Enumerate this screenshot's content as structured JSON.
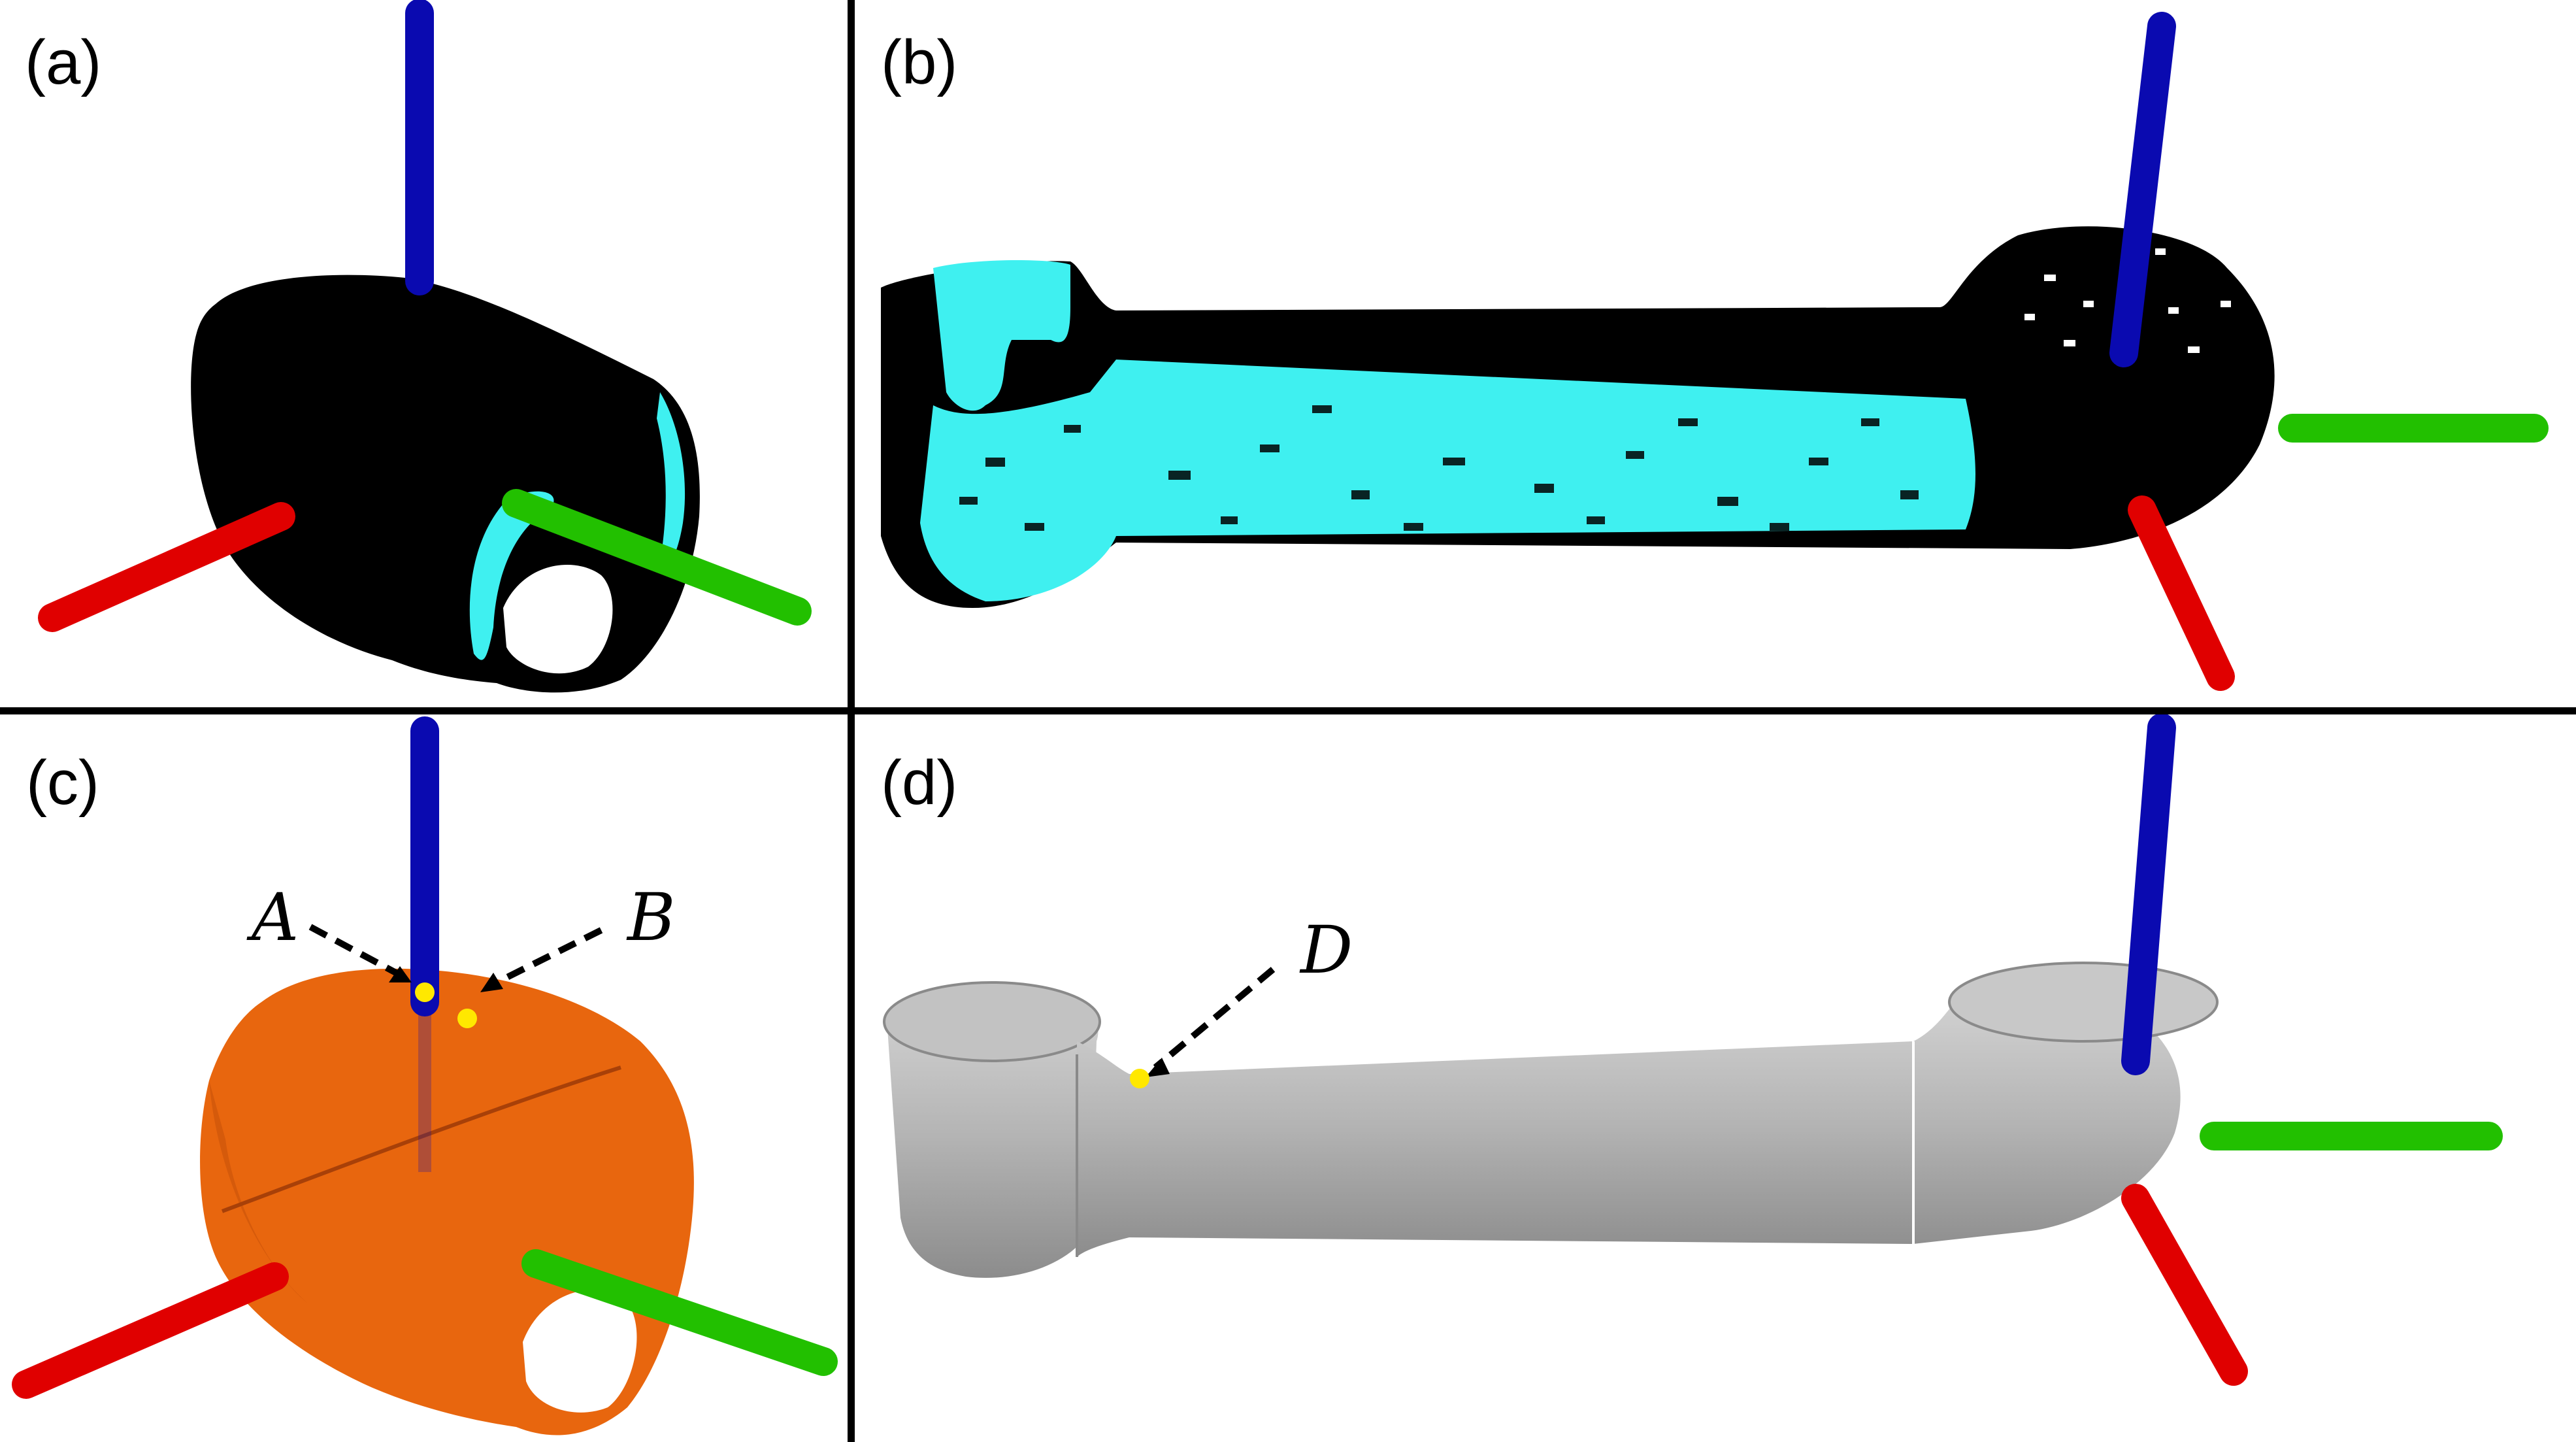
{
  "panels": {
    "a": {
      "label": "(a)"
    },
    "b": {
      "label": "(b)"
    },
    "c": {
      "label": "(c)",
      "points": [
        "A",
        "B"
      ]
    },
    "d": {
      "label": "(d)",
      "points": [
        "D"
      ]
    }
  },
  "colors": {
    "axis_x": "#e00000",
    "axis_y": "#22c000",
    "axis_z": "#0a0ab0",
    "point_cloud_dark": "#000000",
    "point_cloud_highlight": "#3ff0f0",
    "mesh_orange": "#e8660e",
    "mesh_gray": "#b8b8b8",
    "marker": "#ffe800"
  }
}
